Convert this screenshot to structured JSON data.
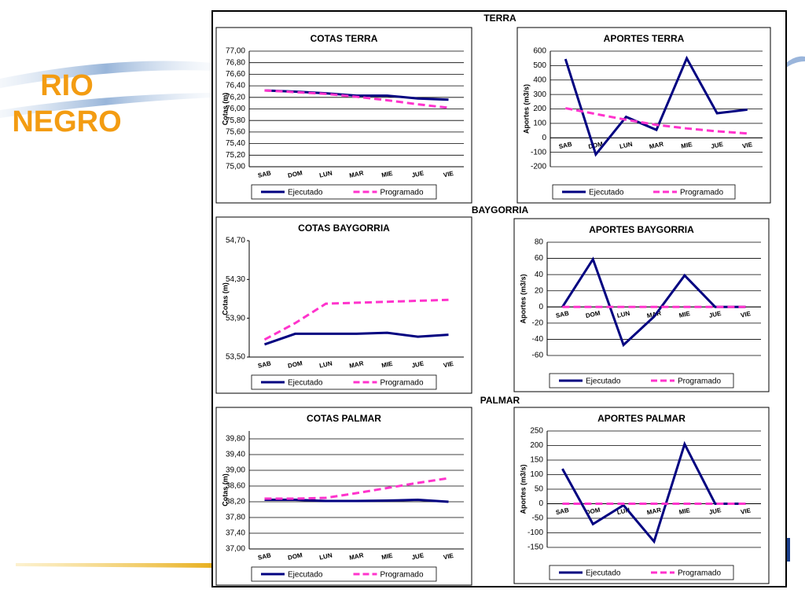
{
  "slide_title": "RIO NEGRO",
  "sections": [
    "TERRA",
    "BAYGORRIA",
    "PALMAR"
  ],
  "chart_data": [
    {
      "type": "line",
      "title": "COTAS TERRA",
      "ylabel": "Cotas (m)",
      "categories": [
        "SAB",
        "DOM",
        "LUN",
        "MAR",
        "MIE",
        "JUE",
        "VIE"
      ],
      "series": [
        {
          "name": "Ejecutado",
          "color": "#000080",
          "dash": false,
          "values": [
            76.32,
            76.3,
            76.27,
            76.23,
            76.23,
            76.18,
            76.16
          ]
        },
        {
          "name": "Programado",
          "color": "#ff33cc",
          "dash": true,
          "values": [
            76.32,
            76.29,
            76.26,
            76.21,
            76.15,
            76.08,
            76.02
          ]
        }
      ],
      "ylim": [
        75,
        77
      ],
      "yticks": [
        {
          "value": 75,
          "label": "75,00"
        },
        {
          "value": 75.2,
          "label": "75,20"
        },
        {
          "value": 75.4,
          "label": "75,40"
        },
        {
          "value": 75.6,
          "label": "75,60"
        },
        {
          "value": 75.8,
          "label": "75,80"
        },
        {
          "value": 76,
          "label": "76,00"
        },
        {
          "value": 76.2,
          "label": "76,20"
        },
        {
          "value": 76.4,
          "label": "76,40"
        },
        {
          "value": 76.6,
          "label": "76,60"
        },
        {
          "value": 76.8,
          "label": "76,80"
        },
        {
          "value": 77,
          "label": "77,00"
        }
      ],
      "grid": true
    },
    {
      "type": "line",
      "title": "APORTES TERRA",
      "ylabel": "Aportes (m3/s)",
      "categories": [
        "SAB",
        "DOM",
        "LUN",
        "MAR",
        "MIE",
        "JUE",
        "VIE"
      ],
      "series": [
        {
          "name": "Ejecutado",
          "color": "#000080",
          "dash": false,
          "values": [
            545,
            -115,
            145,
            55,
            550,
            170,
            195
          ]
        },
        {
          "name": "Programado",
          "color": "#ff33cc",
          "dash": true,
          "values": [
            205,
            165,
            125,
            90,
            65,
            45,
            30
          ]
        }
      ],
      "ylim": [
        -200,
        600
      ],
      "yticks": [
        -200,
        -100,
        0,
        100,
        200,
        300,
        400,
        500,
        600
      ],
      "grid": true
    },
    {
      "type": "line",
      "title": "COTAS BAYGORRIA",
      "ylabel": "Cotas (m)",
      "categories": [
        "SAB",
        "DOM",
        "LUN",
        "MAR",
        "MIE",
        "JUE",
        "VIE"
      ],
      "series": [
        {
          "name": "Ejecutado",
          "color": "#000080",
          "dash": false,
          "values": [
            53.63,
            53.74,
            53.74,
            53.74,
            53.75,
            53.71,
            53.73
          ]
        },
        {
          "name": "Programado",
          "color": "#ff33cc",
          "dash": true,
          "values": [
            53.68,
            53.85,
            54.05,
            54.06,
            54.07,
            54.08,
            54.09
          ]
        }
      ],
      "ylim": [
        53.5,
        54.7
      ],
      "yticks": [
        {
          "value": 53.5,
          "label": "53,50"
        },
        {
          "value": 53.9,
          "label": "53,90"
        },
        {
          "value": 54.3,
          "label": "54,30"
        },
        {
          "value": 54.7,
          "label": "54,70"
        }
      ],
      "grid": false
    },
    {
      "type": "line",
      "title": "APORTES BAYGORRIA",
      "ylabel": "Aportes (m3/s)",
      "categories": [
        "SAB",
        "DOM",
        "LUN",
        "MAR",
        "MIE",
        "JUE",
        "VIE"
      ],
      "series": [
        {
          "name": "Ejecutado",
          "color": "#000080",
          "dash": false,
          "values": [
            0,
            59,
            -47,
            -12,
            39,
            0,
            0
          ]
        },
        {
          "name": "Programado",
          "color": "#ff33cc",
          "dash": true,
          "values": [
            0,
            0,
            0,
            0,
            0,
            0,
            0
          ]
        }
      ],
      "ylim": [
        -60,
        80
      ],
      "yticks": [
        -60,
        -40,
        -20,
        0,
        20,
        40,
        60,
        80
      ],
      "grid": true
    },
    {
      "type": "line",
      "title": "COTAS PALMAR",
      "ylabel": "Cotas (m)",
      "categories": [
        "SAB",
        "DOM",
        "LUN",
        "MAR",
        "MIE",
        "JUE",
        "VIE"
      ],
      "series": [
        {
          "name": "Ejecutado",
          "color": "#000080",
          "dash": false,
          "values": [
            38.25,
            38.25,
            38.22,
            38.22,
            38.23,
            38.25,
            38.2
          ]
        },
        {
          "name": "Programado",
          "color": "#ff33cc",
          "dash": true,
          "values": [
            38.28,
            38.28,
            38.3,
            38.42,
            38.55,
            38.68,
            38.8
          ]
        }
      ],
      "ylim": [
        37,
        40
      ],
      "yticks": [
        {
          "value": 37,
          "label": "37,00"
        },
        {
          "value": 37.4,
          "label": "37,40"
        },
        {
          "value": 37.8,
          "label": "37,80"
        },
        {
          "value": 38.2,
          "label": "38,20"
        },
        {
          "value": 38.6,
          "label": "38,60"
        },
        {
          "value": 39,
          "label": "39,00"
        },
        {
          "value": 39.4,
          "label": "39,40"
        },
        {
          "value": 39.8,
          "label": "39,80"
        }
      ],
      "grid": true
    },
    {
      "type": "line",
      "title": "APORTES PALMAR",
      "ylabel": "Aportes (m3/s)",
      "categories": [
        "SAB",
        "DOM",
        "LUN",
        "MAR",
        "MIE",
        "JUE",
        "VIE"
      ],
      "series": [
        {
          "name": "Ejecutado",
          "color": "#000080",
          "dash": false,
          "values": [
            120,
            -70,
            -5,
            -130,
            205,
            0,
            0
          ]
        },
        {
          "name": "Programado",
          "color": "#ff33cc",
          "dash": true,
          "values": [
            0,
            0,
            0,
            0,
            0,
            0,
            0
          ]
        }
      ],
      "ylim": [
        -150,
        250
      ],
      "yticks": [
        -150,
        -100,
        -50,
        0,
        50,
        100,
        150,
        200,
        250
      ],
      "grid": true
    }
  ]
}
